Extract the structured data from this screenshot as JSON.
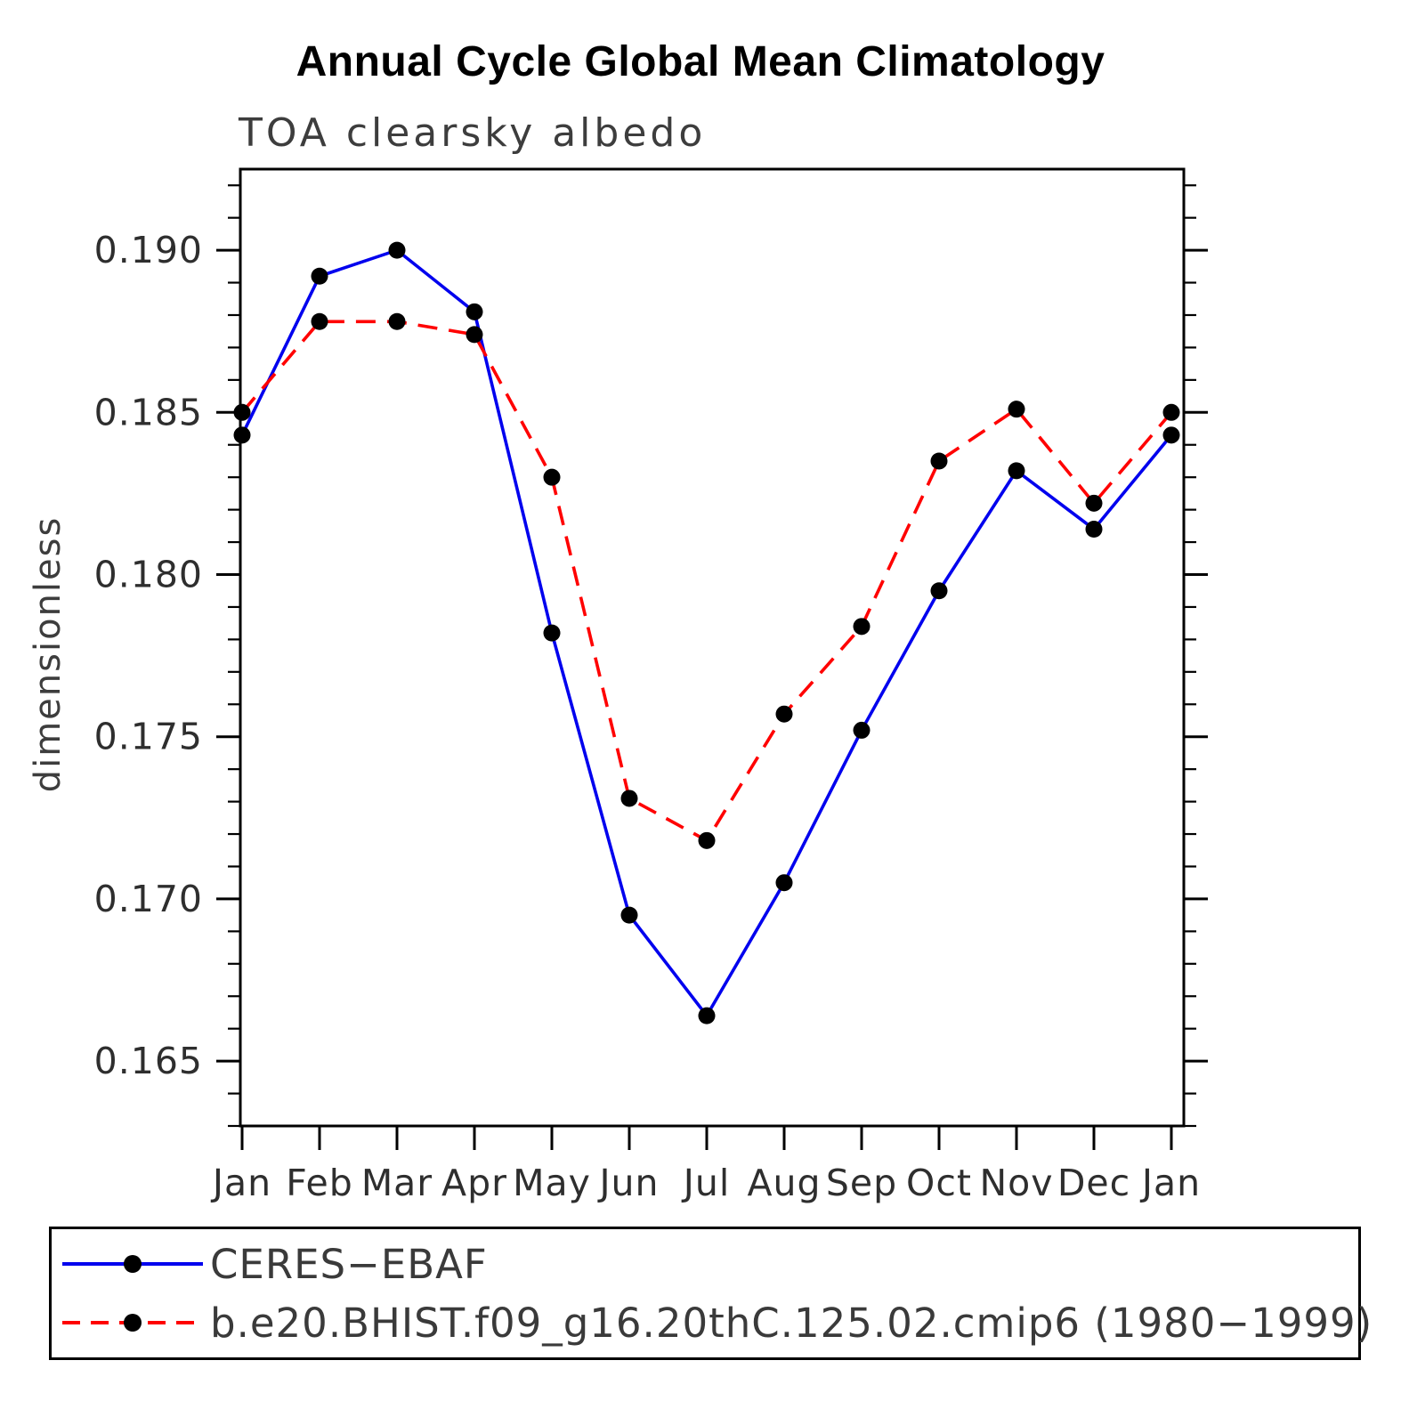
{
  "chart_data": {
    "type": "line",
    "title": "Annual Cycle Global Mean Climatology",
    "subtitle": "TOA clearsky albedo",
    "ylabel": "dimensionless",
    "xlabel": "",
    "categories": [
      "Jan",
      "Feb",
      "Mar",
      "Apr",
      "May",
      "Jun",
      "Jul",
      "Aug",
      "Sep",
      "Oct",
      "Nov",
      "Dec",
      "Jan"
    ],
    "ylim": [
      0.163,
      0.1925
    ],
    "yticks_major": [
      0.165,
      0.17,
      0.175,
      0.18,
      0.185,
      0.19
    ],
    "ytick_minor_step": 0.001,
    "grid": false,
    "legend_position": "bottom",
    "series": [
      {
        "name": "CERES−EBAF",
        "color": "#0000ee",
        "style": "solid",
        "marker_color": "#000000",
        "values": [
          0.1843,
          0.1892,
          0.19,
          0.1881,
          0.1782,
          0.1695,
          0.1664,
          0.1705,
          0.1752,
          0.1795,
          0.1832,
          0.1814,
          0.1843
        ]
      },
      {
        "name": "b.e20.BHIST.f09_g16.20thC.125.02.cmip6 (1980−1999)",
        "color": "#ff0000",
        "style": "dashed",
        "marker_color": "#000000",
        "values": [
          0.185,
          0.1878,
          0.1878,
          0.1874,
          0.183,
          0.1731,
          0.1718,
          0.1757,
          0.1784,
          0.1835,
          0.1851,
          0.1822,
          0.185
        ]
      }
    ]
  }
}
